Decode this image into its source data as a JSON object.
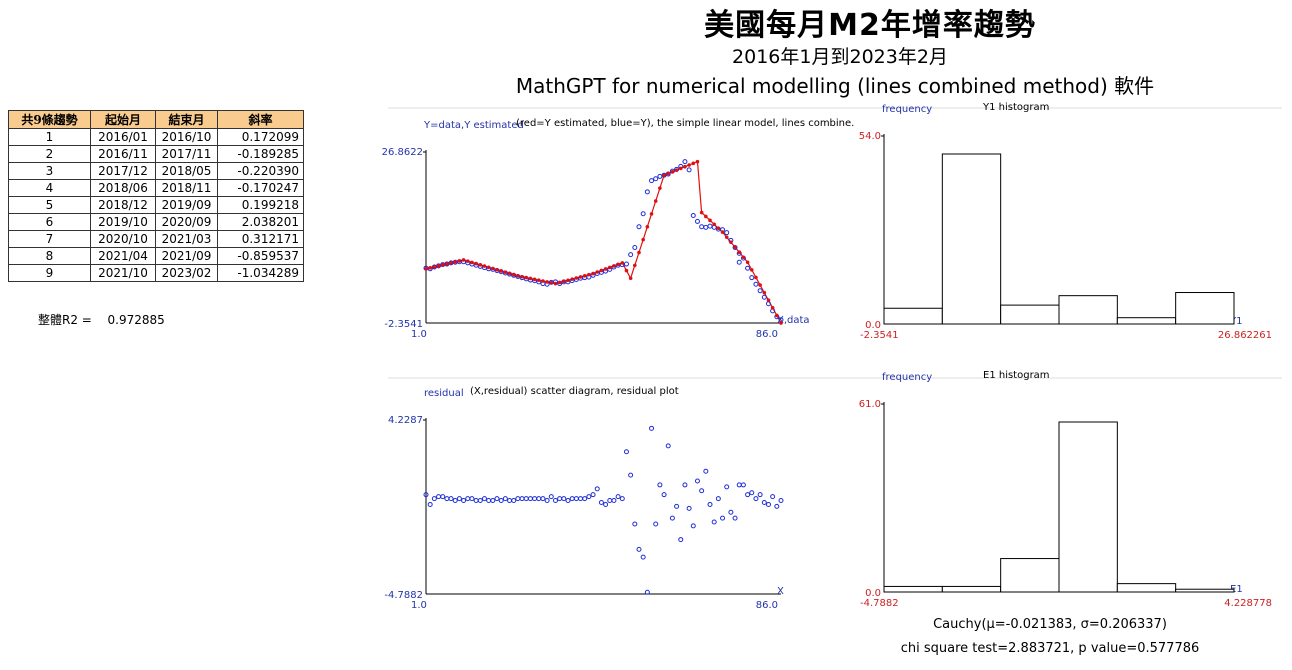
{
  "header": {
    "title": "美國每月M2年增率趨勢",
    "subtitle": "2016年1月到2023年2月",
    "software": "MathGPT for numerical modelling (lines combined method) 軟件"
  },
  "segments_table": {
    "headers": [
      "共9條趨勢",
      "起始月",
      "結束月",
      "斜率"
    ],
    "rows": [
      [
        "1",
        "2016/01",
        "2016/10",
        "0.172099"
      ],
      [
        "2",
        "2016/11",
        "2017/11",
        "-0.189285"
      ],
      [
        "3",
        "2017/12",
        "2018/05",
        "-0.220390"
      ],
      [
        "4",
        "2018/06",
        "2018/11",
        "-0.170247"
      ],
      [
        "5",
        "2018/12",
        "2019/09",
        "0.199218"
      ],
      [
        "6",
        "2019/10",
        "2020/09",
        "2.038201"
      ],
      [
        "7",
        "2020/10",
        "2021/03",
        "0.312171"
      ],
      [
        "8",
        "2021/04",
        "2021/09",
        "-0.859537"
      ],
      [
        "9",
        "2021/10",
        "2023/02",
        "-1.034289"
      ]
    ]
  },
  "r2": {
    "label": "整體R2 =",
    "value": "0.972885"
  },
  "stats": {
    "cauchy": "Cauchy(μ=-0.021383, σ=0.206337)",
    "chi": "chi square test=2.883721, p value=0.577786"
  },
  "colors": {
    "data": "#1f2fd6",
    "estimate": "#e01010",
    "axis_label": "#2233aa",
    "hist_label": "#cc2222",
    "table_header": "#f9cb8f"
  },
  "chart_data": [
    {
      "type": "line",
      "caption": "(red=Y estimated, blue=Y), the simple linear model, lines combine.",
      "ylabel": "Y=data,Y estimated",
      "xlabel": "X,data",
      "x_min_label": "1.0",
      "x_max_label": "86.0",
      "y_max_label": "26.8622",
      "y_min_label": "-2.3541",
      "xlim": [
        1,
        86
      ],
      "ylim": [
        -2.3541,
        26.8622
      ],
      "series": [
        {
          "role": "data",
          "x": [
            1,
            2,
            3,
            4,
            5,
            6,
            7,
            8,
            9,
            10,
            11,
            12,
            13,
            14,
            15,
            16,
            17,
            18,
            19,
            20,
            21,
            22,
            23,
            24,
            25,
            26,
            27,
            28,
            29,
            30,
            31,
            32,
            33,
            34,
            35,
            36,
            37,
            38,
            39,
            40,
            41,
            42,
            43,
            44,
            45,
            46,
            47,
            48,
            49,
            50,
            51,
            52,
            53,
            54,
            55,
            56,
            57,
            58,
            59,
            60,
            61,
            62,
            63,
            64,
            65,
            66,
            67,
            68,
            69,
            70,
            71,
            72,
            73,
            74,
            75,
            76,
            77,
            76,
            78,
            79,
            80,
            81,
            82,
            83,
            84,
            85,
            86
          ],
          "y": [
            6.9,
            6.8,
            7.1,
            7.3,
            7.5,
            7.6,
            7.8,
            7.9,
            8.0,
            8.0,
            7.8,
            7.6,
            7.4,
            7.2,
            7.0,
            6.8,
            6.7,
            6.5,
            6.3,
            6.1,
            5.9,
            5.7,
            5.5,
            5.3,
            5.1,
            4.9,
            4.8,
            4.6,
            4.3,
            4.2,
            4.5,
            4.6,
            4.3,
            4.6,
            4.6,
            4.8,
            5.0,
            5.2,
            5.3,
            5.4,
            5.7,
            6.0,
            6.2,
            6.4,
            6.7,
            7.1,
            7.4,
            7.5,
            7.6,
            9.2,
            10.4,
            13.9,
            16.1,
            19.8,
            21.7,
            22.0,
            22.4,
            22.6,
            22.8,
            23.3,
            23.6,
            24.1,
            24.9,
            23.5,
            15.8,
            14.8,
            13.9,
            13.8,
            14.0,
            13.8,
            13.5,
            13.4,
            12.9,
            11.6,
            10.4,
            9.4,
            8.6,
            7.9,
            6.9,
            5.3,
            4.2,
            3.1,
            2.0,
            0.9,
            -0.3,
            -1.3,
            -1.8
          ]
        },
        {
          "role": "estimate",
          "x": [
            1,
            10,
            23,
            32,
            41,
            48,
            50,
            58,
            66,
            67,
            72,
            78,
            86
          ],
          "y": [
            6.8,
            8.3,
            5.6,
            4.3,
            6.0,
            7.8,
            5.2,
            22.6,
            24.9,
            16.3,
            13.0,
            7.9,
            -2.35
          ]
        }
      ]
    },
    {
      "type": "bar",
      "caption": "Y1 histogram",
      "ylabel": "frequency",
      "xlabel": "Y1",
      "x_min_label": "-2.3541",
      "x_max_label": "26.862261",
      "y_max_label": "54.0",
      "y_min_label": "0.0",
      "bins": 6,
      "values": [
        5,
        54,
        6,
        9,
        2,
        10
      ]
    },
    {
      "type": "scatter",
      "caption": "(X,residual) scatter diagram, residual plot",
      "ylabel": "residual",
      "xlabel": "X",
      "x_min_label": "1.0",
      "x_max_label": "86.0",
      "y_max_label": "4.2287",
      "y_min_label": "-4.7882",
      "xlim": [
        1,
        86
      ],
      "ylim": [
        -4.7882,
        4.2287
      ],
      "x": [
        1,
        2,
        3,
        4,
        5,
        6,
        7,
        8,
        9,
        10,
        11,
        12,
        13,
        14,
        15,
        16,
        17,
        18,
        19,
        20,
        21,
        22,
        23,
        24,
        25,
        26,
        27,
        28,
        29,
        30,
        31,
        32,
        33,
        34,
        35,
        36,
        37,
        38,
        39,
        40,
        41,
        42,
        43,
        44,
        45,
        46,
        47,
        48,
        49,
        50,
        51,
        52,
        53,
        54,
        55,
        56,
        57,
        58,
        59,
        60,
        61,
        62,
        63,
        64,
        65,
        66,
        67,
        68,
        69,
        70,
        71,
        72,
        73,
        74,
        75,
        76,
        77,
        78,
        79,
        80,
        81,
        82,
        83,
        84,
        85,
        86
      ],
      "y": [
        0.3,
        -0.2,
        0.1,
        0.2,
        0.2,
        0.1,
        0.1,
        0.0,
        0.1,
        0.0,
        0.1,
        0.1,
        0.0,
        0.0,
        0.1,
        0.0,
        0.0,
        0.1,
        0.0,
        0.1,
        0.0,
        0.0,
        0.1,
        0.1,
        0.1,
        0.1,
        0.1,
        0.1,
        0.1,
        0.0,
        0.2,
        0.0,
        0.1,
        0.1,
        0.0,
        0.1,
        0.1,
        0.1,
        0.1,
        0.2,
        0.3,
        0.6,
        -0.1,
        -0.2,
        0.0,
        0.0,
        0.2,
        0.1,
        2.5,
        1.3,
        -1.2,
        -2.5,
        -2.9,
        -4.7,
        3.7,
        -1.2,
        0.8,
        0.3,
        2.8,
        -0.9,
        -0.3,
        -2.0,
        0.8,
        -0.4,
        -1.3,
        1.0,
        0.5,
        1.5,
        -0.2,
        -1.1,
        0.1,
        -0.9,
        0.7,
        -0.6,
        -0.9,
        0.8,
        0.8,
        0.3,
        0.4,
        0.1,
        0.3,
        -0.1,
        -0.2,
        0.2,
        -0.3,
        0.0
      ]
    },
    {
      "type": "bar",
      "caption": "E1 histogram",
      "ylabel": "frequency",
      "xlabel": "E1",
      "x_min_label": "-4.7882",
      "x_max_label": "4.228778",
      "y_max_label": "61.0",
      "y_min_label": "0.0",
      "bins": 6,
      "values": [
        2,
        2,
        12,
        61,
        3,
        1
      ]
    }
  ]
}
